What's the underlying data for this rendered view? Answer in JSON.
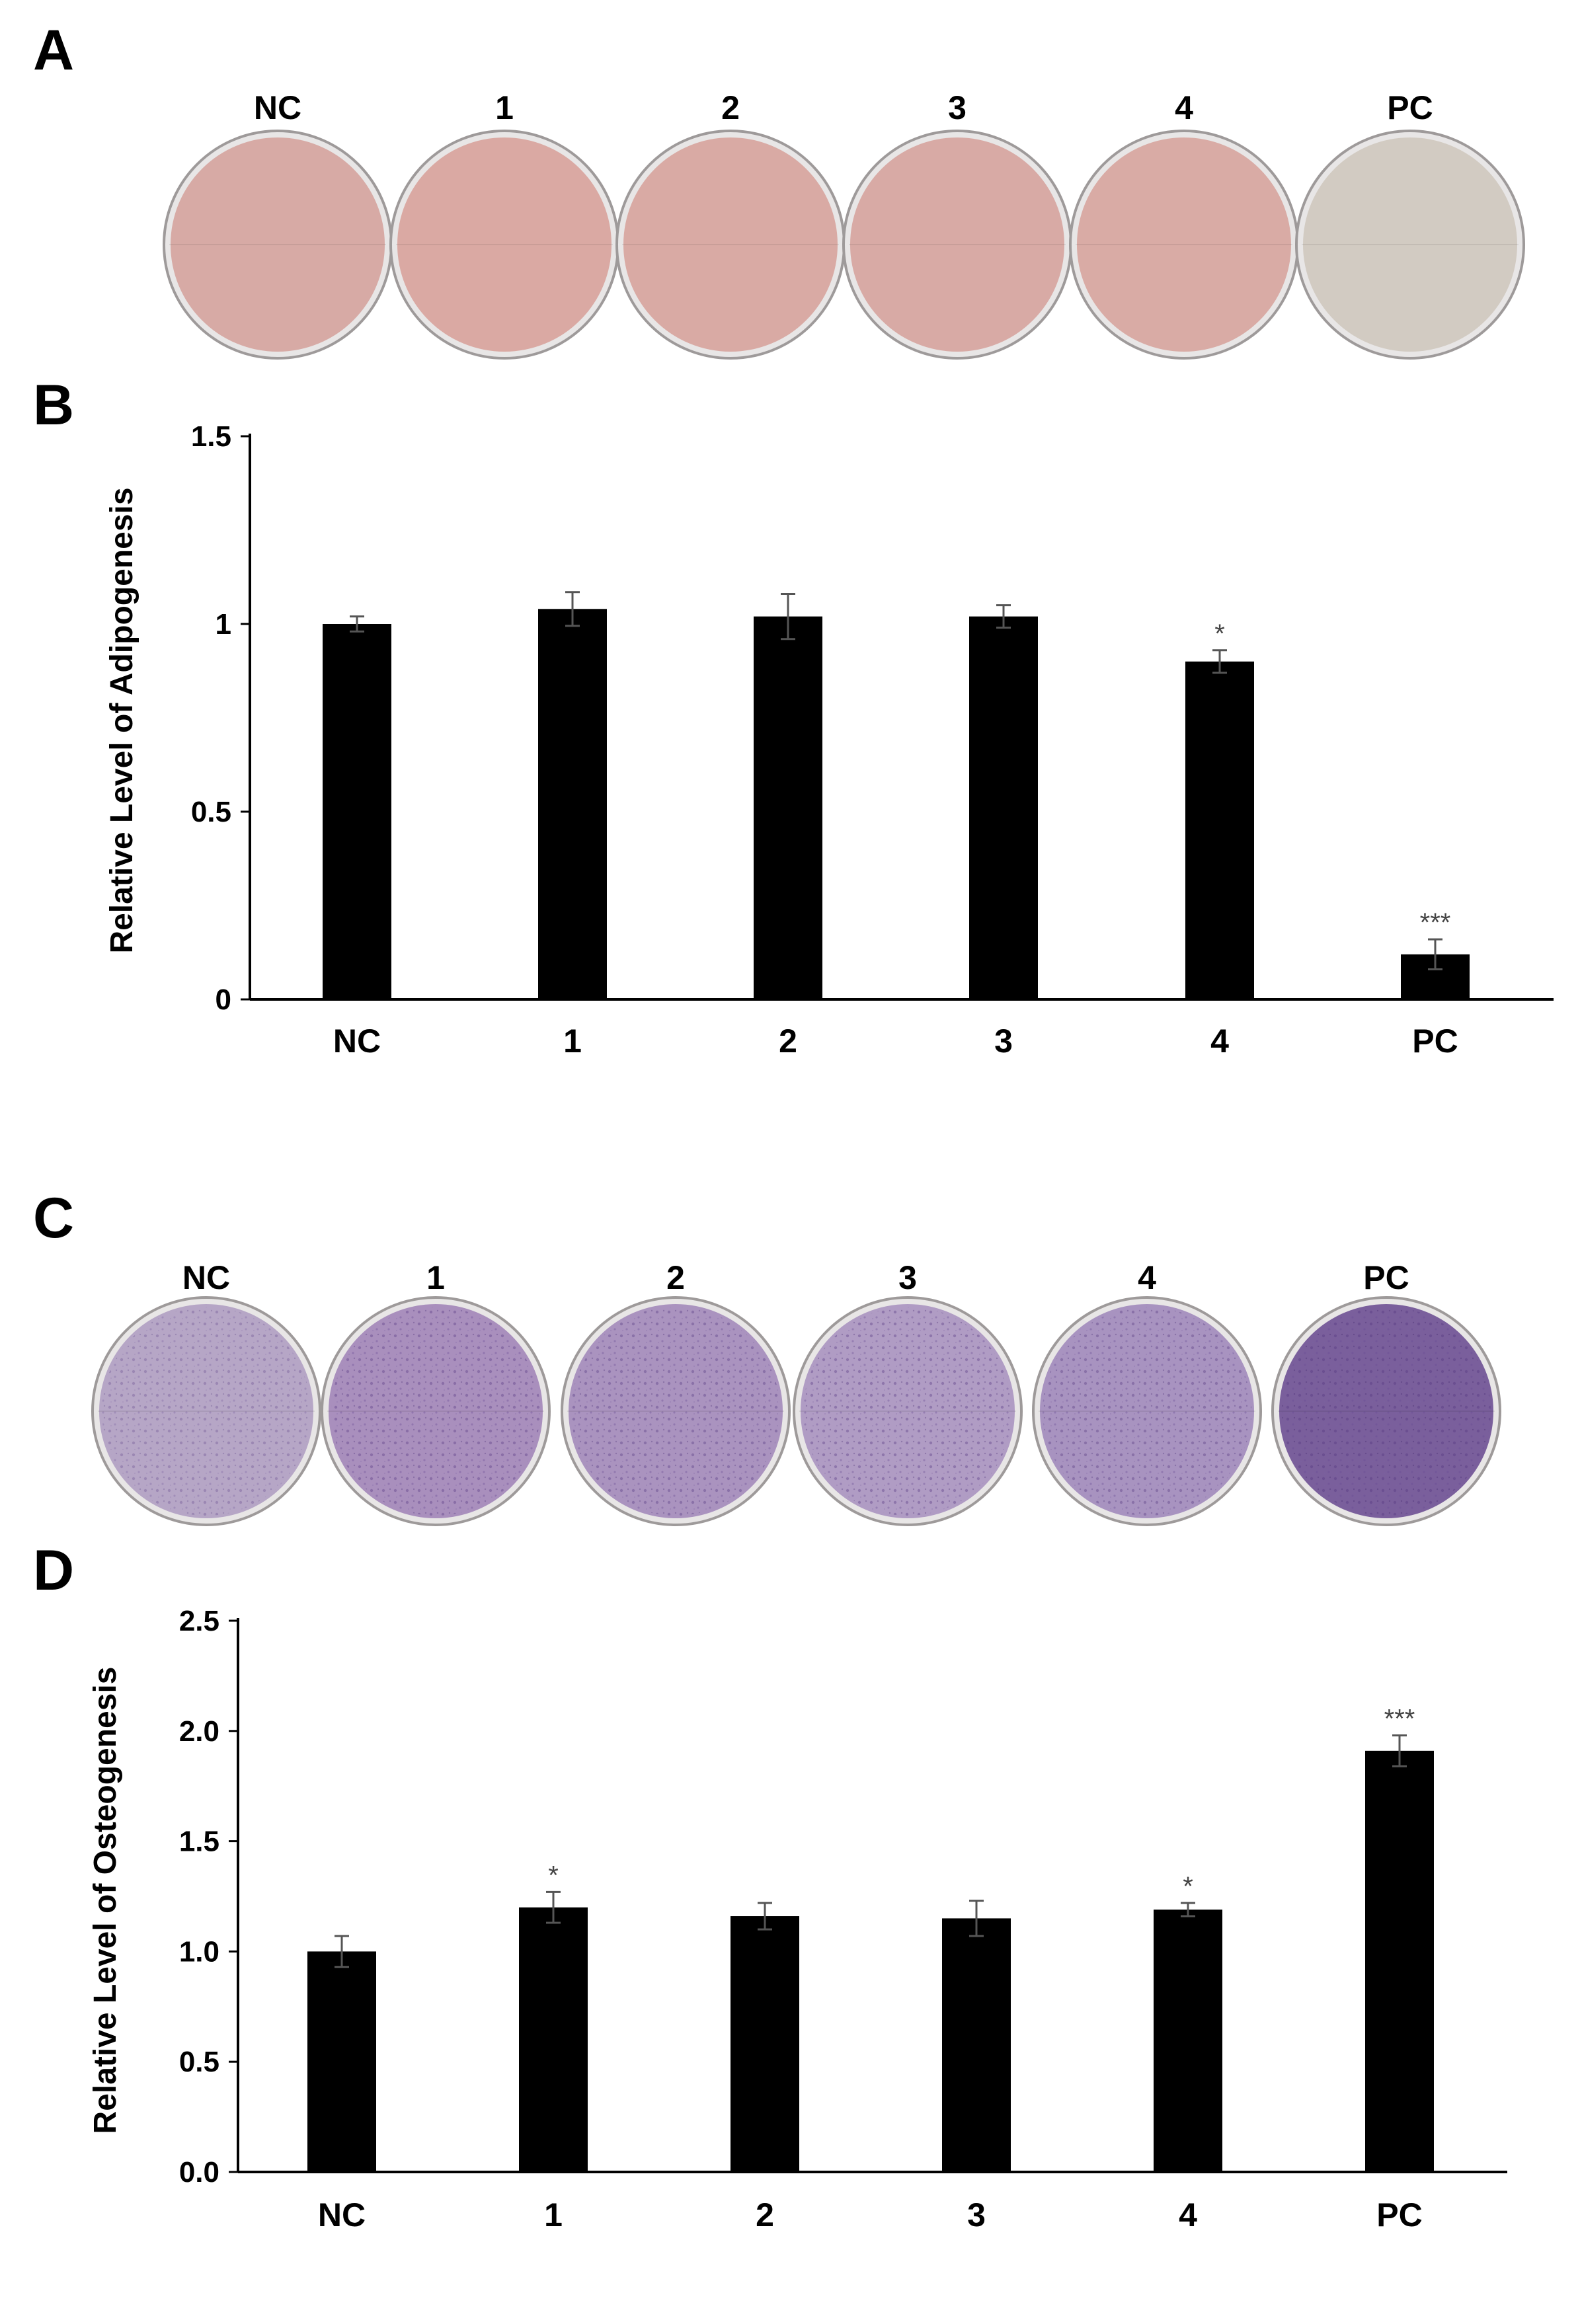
{
  "panels": {
    "A": "A",
    "B": "B",
    "C": "C",
    "D": "D"
  },
  "conditions": [
    "NC",
    "1",
    "2",
    "3",
    "4",
    "PC"
  ],
  "dish_colors": {
    "adipogenesis": [
      "#d7aaa5",
      "#daa9a3",
      "#d9aaa4",
      "#d8aaa5",
      "#d9aba5",
      "#d2cbc2"
    ],
    "osteogenesis": [
      "#b6a6c6",
      "#a98fbd",
      "#aa93bf",
      "#b09cc4",
      "#a893c0",
      "#7a5f9c"
    ]
  },
  "chart_data": [
    {
      "type": "bar",
      "panel": "B",
      "categories": [
        "NC",
        "1",
        "2",
        "3",
        "4",
        "PC"
      ],
      "values": [
        1.0,
        1.04,
        1.02,
        1.02,
        0.9,
        0.12
      ],
      "errors": [
        0.02,
        0.045,
        0.06,
        0.03,
        0.03,
        0.04
      ],
      "significance": [
        "",
        "",
        "",
        "",
        "*",
        "***"
      ],
      "ylabel": "Relative Level of Adipogenesis",
      "yticks": [
        "0",
        "0.5",
        "1",
        "1.5"
      ],
      "ylim": [
        0,
        1.5
      ],
      "bar_color": "#000000",
      "grid": false,
      "legend": "none"
    },
    {
      "type": "bar",
      "panel": "D",
      "categories": [
        "NC",
        "1",
        "2",
        "3",
        "4",
        "PC"
      ],
      "values": [
        1.0,
        1.2,
        1.16,
        1.15,
        1.19,
        1.91
      ],
      "errors": [
        0.07,
        0.07,
        0.06,
        0.08,
        0.03,
        0.07
      ],
      "significance": [
        "",
        "*",
        "",
        "",
        "*",
        "***"
      ],
      "ylabel": "Relative Level of Osteogenesis",
      "yticks": [
        "0.0",
        "0.5",
        "1.0",
        "1.5",
        "2.0",
        "2.5"
      ],
      "ylim": [
        0,
        2.5
      ],
      "bar_color": "#000000",
      "grid": false,
      "legend": "none"
    }
  ]
}
